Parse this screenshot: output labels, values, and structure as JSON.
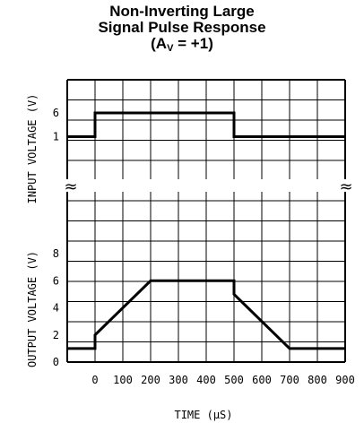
{
  "chart_data": {
    "type": "line",
    "title_lines": [
      "Non-Inverting Large",
      "Signal Pulse Response"
    ],
    "gain_label": {
      "prefix": "(A",
      "subscript": "V",
      "suffix": " = +1)"
    },
    "xlabel": "TIME (µS)",
    "x_ticks": [
      "0",
      "100",
      "200",
      "300",
      "400",
      "500",
      "600",
      "700",
      "800",
      "900"
    ],
    "xlim": [
      -100,
      900
    ],
    "grid": true,
    "panels": [
      {
        "name": "input",
        "ylabel": "INPUT VOLTAGE (V)",
        "y_ticks": [
          "6",
          "1"
        ],
        "x": [
          -100,
          0,
          0,
          500,
          500,
          900
        ],
        "y": [
          1,
          1,
          6,
          6,
          1,
          1
        ]
      },
      {
        "name": "output",
        "ylabel": "OUTPUT VOLTAGE (V)",
        "y_ticks": [
          "8",
          "6",
          "4",
          "2",
          "0"
        ],
        "ylim": [
          0,
          8
        ],
        "x": [
          -100,
          0,
          0,
          200,
          500,
          500,
          700,
          900
        ],
        "y": [
          1,
          1,
          2,
          6,
          6,
          5,
          1,
          1
        ]
      }
    ],
    "break_symbol": "≈"
  }
}
